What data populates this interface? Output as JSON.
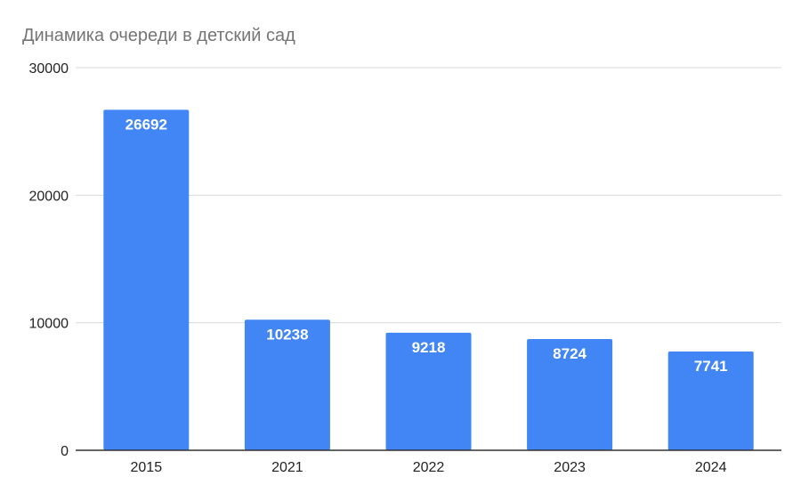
{
  "chart_data": {
    "type": "bar",
    "title": "Динамика очереди в детский сад",
    "xlabel": "",
    "ylabel": "",
    "categories": [
      "2015",
      "2021",
      "2022",
      "2023",
      "2024"
    ],
    "values": [
      26692,
      10238,
      9218,
      8724,
      7741
    ],
    "data_labels": [
      "26692",
      "10238",
      "9218",
      "8724",
      "7741"
    ],
    "ylim": [
      0,
      30000
    ],
    "yticks": [
      0,
      10000,
      20000,
      30000
    ],
    "ytick_labels": [
      "0",
      "10000",
      "20000",
      "30000"
    ],
    "grid": true,
    "legend": "none",
    "colors": {
      "bar": "#4285f4",
      "grid": "#d9d9d9",
      "axis": "#333333",
      "title": "#757575",
      "tick": "#222222",
      "data_label": "#ffffff"
    }
  }
}
